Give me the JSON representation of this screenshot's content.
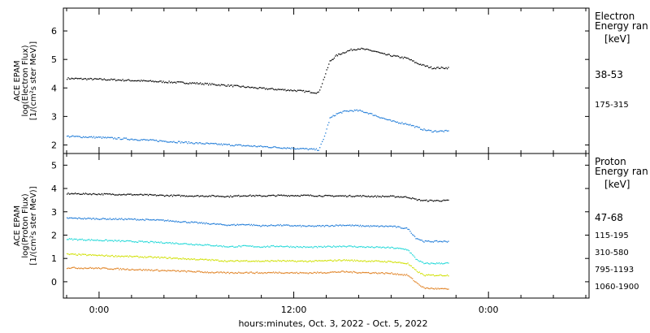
{
  "chart_data": [
    {
      "type": "scatter",
      "ylabel_lines": [
        "ACE EPAM",
        "log(Electron Flux)",
        "[1/(cm²s ster MeV)]"
      ],
      "ylim": [
        1.7,
        6.8
      ],
      "yticks": [
        2,
        3,
        4,
        5,
        6
      ],
      "legend_title": [
        "Electron",
        "Energy ran"
      ],
      "legend_unit": "[keV]",
      "series": [
        {
          "name": "38-53",
          "color": "#000000",
          "x": [
            -2,
            0,
            2,
            4,
            6,
            8,
            10,
            12,
            13.5,
            13.8,
            14.2,
            14.6,
            15,
            15.5,
            16,
            16.5,
            17,
            17.5,
            18,
            18.5,
            19,
            19.5,
            20,
            20.5,
            21.5
          ],
          "y": [
            4.35,
            4.32,
            4.28,
            4.23,
            4.18,
            4.1,
            4.0,
            3.93,
            3.85,
            4.3,
            4.95,
            5.15,
            5.25,
            5.35,
            5.4,
            5.35,
            5.3,
            5.2,
            5.15,
            5.1,
            5.05,
            4.9,
            4.8,
            4.72,
            4.72
          ]
        },
        {
          "name": "175-315",
          "color": "#1e7bd8",
          "x": [
            -2,
            0,
            2,
            4,
            6,
            8,
            10,
            12,
            13.5,
            13.8,
            14.2,
            14.6,
            15,
            15.5,
            16,
            16.5,
            17,
            17.5,
            18,
            18.5,
            19,
            19.5,
            20,
            20.5,
            21.5
          ],
          "y": [
            2.32,
            2.28,
            2.22,
            2.15,
            2.08,
            2.02,
            1.96,
            1.9,
            1.85,
            2.2,
            2.95,
            3.1,
            3.18,
            3.22,
            3.22,
            3.15,
            3.05,
            2.95,
            2.85,
            2.8,
            2.75,
            2.65,
            2.55,
            2.5,
            2.5
          ]
        }
      ]
    },
    {
      "type": "scatter",
      "ylabel_lines": [
        "ACE EPAM",
        "log(Proton Flux)",
        "[1/(cm²s ster MeV)]"
      ],
      "ylim": [
        -0.7,
        5.5
      ],
      "yticks": [
        0,
        1,
        2,
        3,
        4,
        5
      ],
      "legend_title": [
        "Proton",
        "Energy ran"
      ],
      "legend_unit": "[keV]",
      "series": [
        {
          "name": "47-68",
          "color": "#000000",
          "x": [
            -2,
            0,
            2,
            4,
            6,
            7,
            8,
            9,
            10,
            11,
            12,
            13,
            14,
            15,
            16,
            17,
            18,
            19,
            19.5,
            20,
            21.5
          ],
          "y": [
            3.8,
            3.78,
            3.76,
            3.72,
            3.7,
            3.7,
            3.68,
            3.72,
            3.7,
            3.72,
            3.72,
            3.72,
            3.7,
            3.7,
            3.7,
            3.68,
            3.68,
            3.65,
            3.55,
            3.5,
            3.5
          ]
        },
        {
          "name": "115-195",
          "color": "#1e7bd8",
          "x": [
            -2,
            0,
            2,
            4,
            6,
            7,
            8,
            9,
            10,
            11,
            12,
            13,
            14,
            15,
            16,
            17,
            18,
            19,
            19.5,
            20,
            21.5
          ],
          "y": [
            2.75,
            2.72,
            2.7,
            2.65,
            2.55,
            2.5,
            2.45,
            2.48,
            2.42,
            2.45,
            2.42,
            2.4,
            2.42,
            2.45,
            2.42,
            2.4,
            2.4,
            2.3,
            1.9,
            1.75,
            1.75
          ]
        },
        {
          "name": "310-580",
          "color": "#20d8d8",
          "x": [
            -2,
            0,
            2,
            4,
            6,
            7,
            8,
            9,
            10,
            11,
            12,
            13,
            14,
            15,
            16,
            17,
            18,
            19,
            19.5,
            20,
            21.5
          ],
          "y": [
            1.85,
            1.8,
            1.75,
            1.7,
            1.62,
            1.58,
            1.52,
            1.55,
            1.52,
            1.55,
            1.52,
            1.5,
            1.52,
            1.55,
            1.52,
            1.5,
            1.48,
            1.4,
            1.0,
            0.8,
            0.82
          ]
        },
        {
          "name": "795-1193",
          "color": "#d0e000",
          "x": [
            -2,
            0,
            2,
            4,
            6,
            7,
            8,
            9,
            10,
            11,
            12,
            13,
            14,
            15,
            16,
            17,
            18,
            19,
            19.5,
            20,
            21.5
          ],
          "y": [
            1.2,
            1.15,
            1.1,
            1.05,
            0.98,
            0.95,
            0.9,
            0.92,
            0.9,
            0.92,
            0.9,
            0.9,
            0.92,
            0.95,
            0.92,
            0.9,
            0.88,
            0.8,
            0.5,
            0.3,
            0.3
          ]
        },
        {
          "name": "1060-1900",
          "color": "#e08020",
          "x": [
            -2,
            0,
            2,
            4,
            6,
            7,
            8,
            9,
            10,
            11,
            12,
            13,
            14,
            15,
            16,
            17,
            18,
            19,
            19.5,
            20,
            21.5
          ],
          "y": [
            0.62,
            0.6,
            0.55,
            0.5,
            0.45,
            0.42,
            0.4,
            0.42,
            0.4,
            0.42,
            0.4,
            0.4,
            0.42,
            0.45,
            0.42,
            0.4,
            0.38,
            0.3,
            0.0,
            -0.25,
            -0.3
          ]
        }
      ]
    }
  ],
  "x_axis": {
    "range": [
      -2.2,
      30.2
    ],
    "ticks": [
      0,
      12,
      24
    ],
    "tick_labels": [
      "0:00",
      "12:00",
      "0:00"
    ],
    "minor_step": 2,
    "xlabel": "hours:minutes, Oct.  3, 2022 - Oct.  5, 2022"
  }
}
